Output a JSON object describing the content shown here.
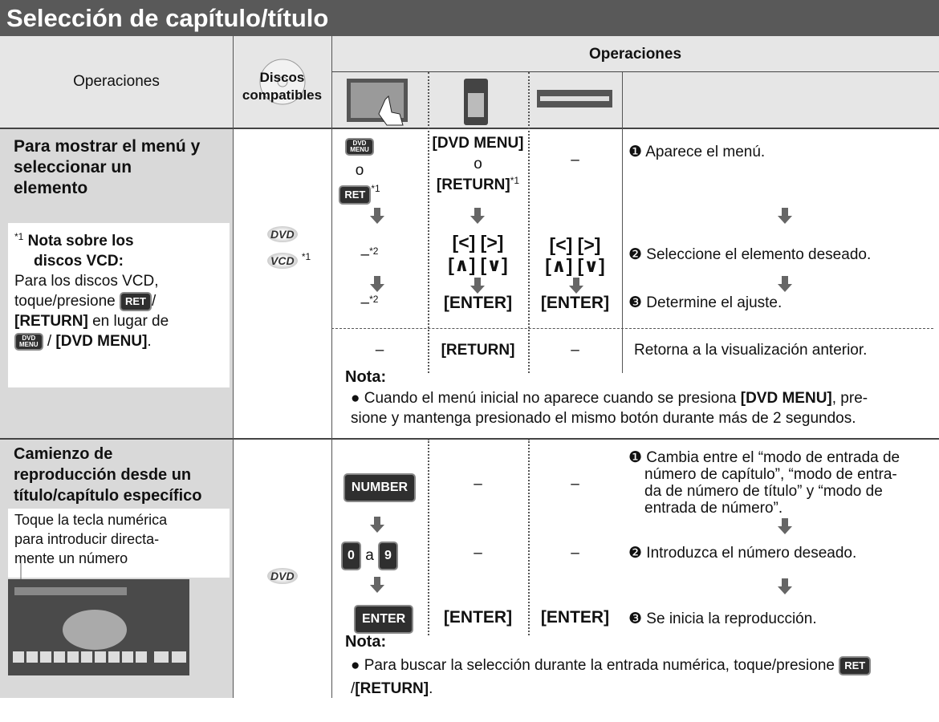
{
  "header": {
    "title": "Selección de capítulo/título"
  },
  "table": {
    "head": {
      "operations": "Operaciones",
      "discs": [
        "Discos",
        "compatibles"
      ],
      "operations_group": "Operaciones"
    },
    "sections": [
      {
        "title": [
          "Para mostrar el menú y",
          "seleccionar un",
          "elemento"
        ],
        "note": {
          "marker": "*1",
          "title": [
            "Nota sobre los",
            "discos VCD:"
          ],
          "line_1": "Para los discos VCD,",
          "line_2": "toque/presione",
          "ret_button": "RET",
          "slash": "/",
          "return": "[RETURN]",
          "instead": " en lugar de",
          "dvd_menu_button": [
            "DVD",
            "MENU"
          ],
          "separator": " / ",
          "dvd_menu": "[DVD MENU]",
          "period": "."
        },
        "discs": [
          {
            "label": "DVD"
          },
          {
            "label": "VCD",
            "marker": "*1"
          }
        ],
        "steps": [
          {
            "touch": {
              "button": [
                "DVD",
                "MENU"
              ],
              "or": "o",
              "button_2": "RET",
              "marker": "*1"
            },
            "remote": {
              "key": "[DVD MENU]",
              "or": "o",
              "key_2": "[RETURN]",
              "marker": "*1"
            },
            "unit": "–",
            "description": "❶ Aparece el menú."
          },
          {
            "touch": {
              "dash": "–",
              "marker": "*2"
            },
            "remote": [
              "[<] [>]",
              "[∧] [∨]"
            ],
            "unit": [
              "[<] [>]",
              "[∧] [∨]"
            ],
            "description": "❷ Seleccione el elemento deseado."
          },
          {
            "touch": {
              "dash": "–",
              "marker": "*2"
            },
            "remote": "[ENTER]",
            "unit": "[ENTER]",
            "description": "❸ Determine el ajuste."
          },
          {
            "touch": "–",
            "remote": "[RETURN]",
            "unit": "–",
            "description": "Retorna a la visualización anterior."
          }
        ],
        "note_block": {
          "title": "Nota:",
          "bullet": "●",
          "text_1": " Cuando el menú inicial no aparece cuando se presiona ",
          "key": "[DVD MENU]",
          "text_2": ", pre-",
          "line_2": "sione y mantenga presionado el mismo botón durante más de 2 segundos."
        }
      },
      {
        "title": [
          "Camienzo de",
          "reproducción desde un",
          "título/capítulo específico"
        ],
        "hint": [
          "Toque la tecla numérica",
          "para introducir directa-",
          "mente un número"
        ],
        "discs": [
          {
            "label": "DVD"
          }
        ],
        "steps": [
          {
            "touch": "NUMBER",
            "remote": "–",
            "unit": "–",
            "description": [
              "❶ Cambia entre el “modo de entrada de",
              "número de capítulo”, “modo de entra-",
              "da de número de título” y “modo de",
              "entrada de número”."
            ]
          },
          {
            "touch": {
              "from": "0",
              "word": "a",
              "to": "9"
            },
            "remote": "–",
            "unit": "–",
            "description": "❷ Introduzca el número deseado."
          },
          {
            "touch": "ENTER",
            "remote": "[ENTER]",
            "unit": "[ENTER]",
            "description": "❸ Se inicia la reproducción."
          }
        ],
        "note_block": {
          "title": "Nota:",
          "bullet": "●",
          "text_1": " Para buscar la selección durante la entrada numérica, toque/presione ",
          "button": "RET",
          "slash": "/",
          "key": "[RETURN]",
          "period": "."
        }
      }
    ]
  }
}
